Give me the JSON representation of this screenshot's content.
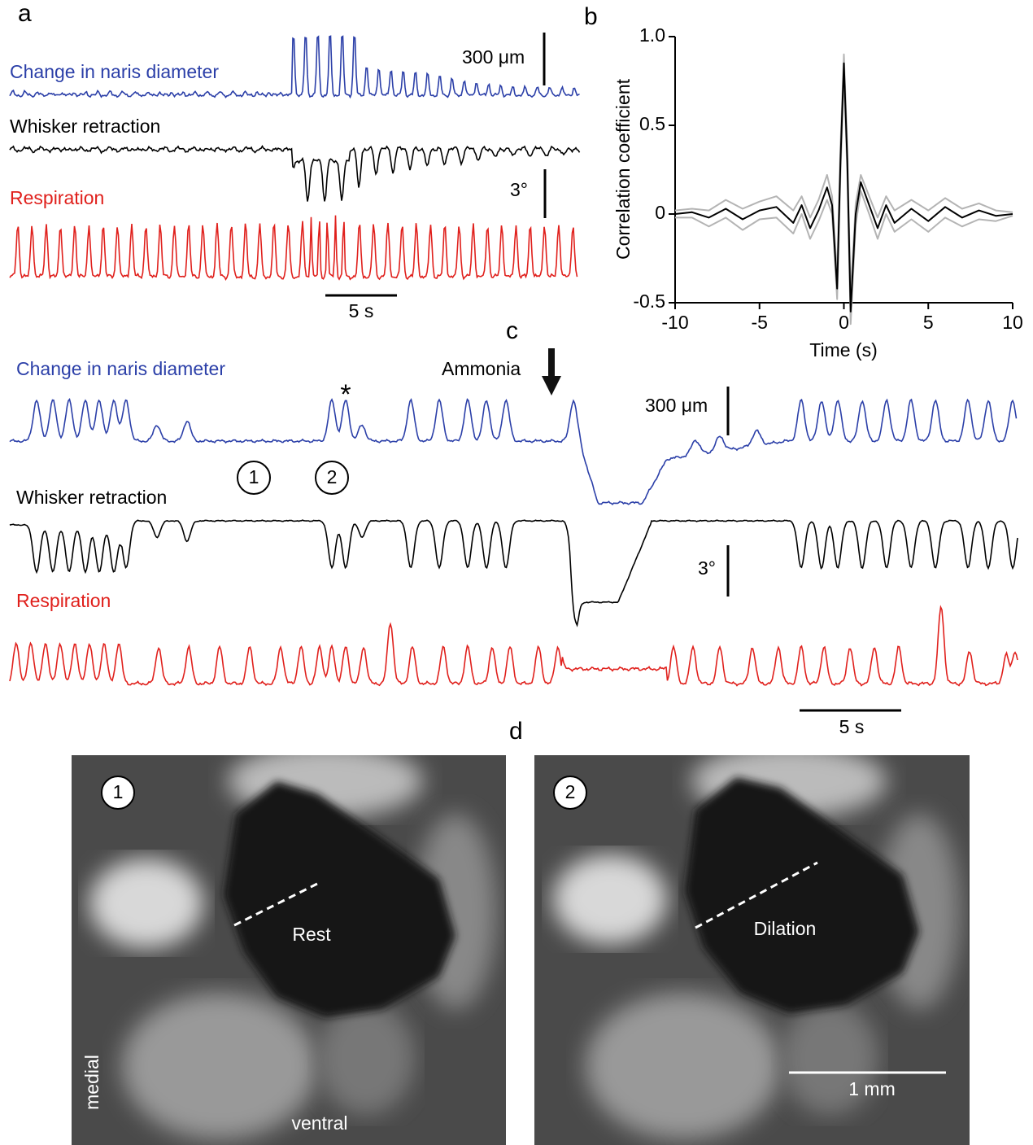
{
  "panel_labels": [
    "a",
    "b",
    "c",
    "d"
  ],
  "panel_a": {
    "traces": [
      "Change in naris diameter",
      "Whisker retraction",
      "Respiration"
    ],
    "scale_bars": [
      "300 μm",
      "3°",
      "5 s"
    ]
  },
  "chart_data": {
    "type": "line",
    "xlabel": "Time (s)",
    "ylabel": "Correlation coefficient",
    "x": [
      -10,
      -9,
      -8,
      -7,
      -6,
      -5,
      -4,
      -3,
      -2.5,
      -2,
      -1.5,
      -1,
      -0.7,
      -0.4,
      -0.2,
      0,
      0.2,
      0.4,
      0.7,
      1,
      1.5,
      2,
      2.5,
      3,
      4,
      5,
      6,
      7,
      8,
      9,
      10
    ],
    "series": [
      {
        "color": "#b4b4b4",
        "values": [
          0.02,
          0.03,
          0.02,
          0.08,
          0.03,
          0.07,
          0.1,
          0.02,
          0.1,
          -0.02,
          0.08,
          0.22,
          0.1,
          -0.35,
          0.38,
          0.9,
          0.38,
          -0.47,
          0.06,
          0.22,
          0.1,
          -0.02,
          0.1,
          0.02,
          0.08,
          0.02,
          0.09,
          0.03,
          0.06,
          0.02,
          0.01
        ]
      },
      {
        "color": "#b4b4b4",
        "values": [
          -0.02,
          -0.02,
          -0.07,
          -0.02,
          -0.09,
          -0.03,
          -0.02,
          -0.11,
          0,
          -0.14,
          -0.04,
          0.08,
          0,
          -0.48,
          0.22,
          0.8,
          0.22,
          -0.62,
          -0.06,
          0.13,
          0,
          -0.14,
          0,
          -0.1,
          -0.03,
          -0.1,
          -0.02,
          -0.07,
          -0.03,
          -0.04,
          -0.01
        ]
      },
      {
        "color": "#000000",
        "values": [
          0,
          0.01,
          -0.02,
          0.03,
          -0.03,
          0.02,
          0.04,
          -0.05,
          0.05,
          -0.08,
          0.02,
          0.15,
          0.05,
          -0.42,
          0.3,
          0.85,
          0.3,
          -0.55,
          0,
          0.18,
          0.05,
          -0.08,
          0.05,
          -0.05,
          0.03,
          -0.04,
          0.04,
          -0.02,
          0.02,
          -0.01,
          0
        ]
      }
    ],
    "xlim": [
      -10,
      10
    ],
    "ylim": [
      -0.5,
      1
    ],
    "xticks": [
      -10,
      -5,
      0,
      5,
      10
    ],
    "yticks": [
      -0.5,
      0,
      0.5,
      {
        "value": 1,
        "label": "1.0"
      }
    ]
  },
  "panel_c": {
    "traces": [
      "Change in naris diameter",
      "Whisker retraction",
      "Respiration"
    ],
    "scale_bars": [
      "300 μm",
      "3°",
      "5 s"
    ],
    "stimulus": "Ammonia",
    "asterisk": "*",
    "markers": [
      "1",
      "2"
    ]
  },
  "panel_d": {
    "images": [
      {
        "marker": "1",
        "label": "Rest",
        "orientation": [
          "medial",
          "ventral"
        ]
      },
      {
        "marker": "2",
        "label": "Dilation",
        "scale_bar": "1 mm"
      }
    ]
  }
}
